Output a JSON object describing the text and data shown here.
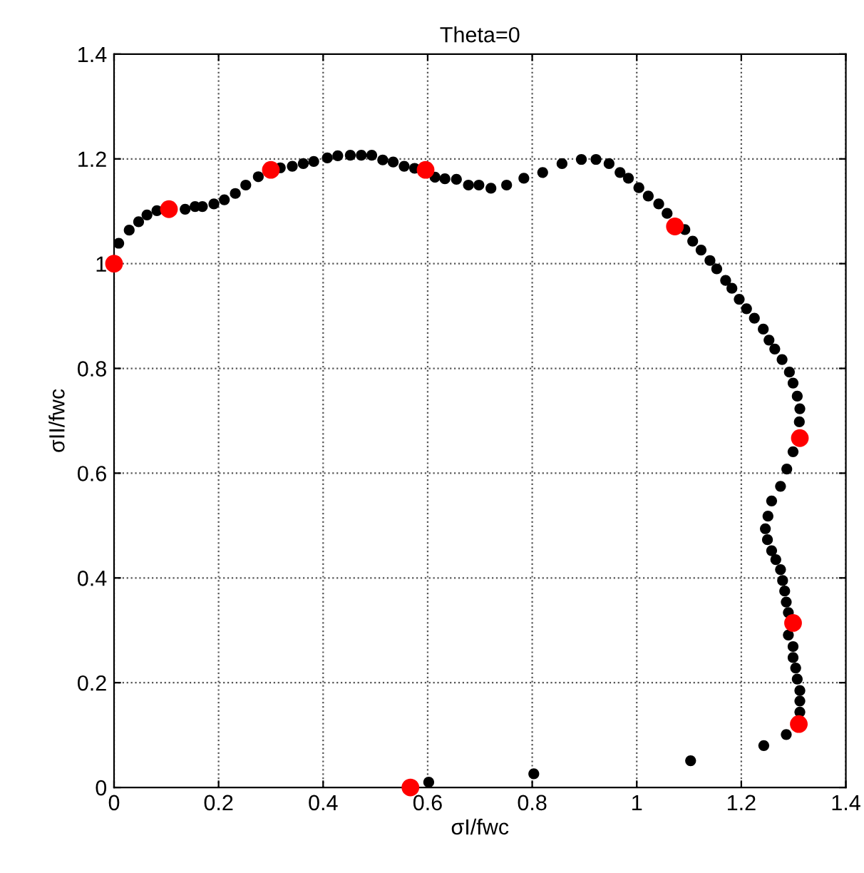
{
  "chart_data": {
    "type": "scatter",
    "title": "Theta=0",
    "xlabel": "σI/fwc",
    "ylabel": "σII/fwc",
    "xlim": [
      0,
      1.4
    ],
    "ylim": [
      0,
      1.4
    ],
    "xticks": [
      0,
      0.2,
      0.4,
      0.6,
      0.8,
      1,
      1.2,
      1.4
    ],
    "yticks": [
      0,
      0.2,
      0.4,
      0.6,
      0.8,
      1,
      1.2,
      1.4
    ],
    "grid": true,
    "legend": false,
    "marker": "circle",
    "series": [
      {
        "color": "#000000",
        "x": [
          0.009,
          0.029,
          0.047,
          0.063,
          0.082,
          0.136,
          0.155,
          0.169,
          0.191,
          0.211,
          0.232,
          0.252,
          0.276,
          0.318,
          0.341,
          0.362,
          0.382,
          0.408,
          0.428,
          0.452,
          0.473,
          0.493,
          0.514,
          0.534,
          0.555,
          0.575,
          0.614,
          0.633,
          0.655,
          0.678,
          0.698,
          0.721,
          0.751,
          0.784,
          0.82,
          0.857,
          0.894,
          0.922,
          0.947,
          0.968,
          0.984,
          1.004,
          1.022,
          1.042,
          1.058,
          1.092,
          1.107,
          1.123,
          1.14,
          1.153,
          1.17,
          1.182,
          1.196,
          1.21,
          1.225,
          1.242,
          1.253,
          1.264,
          1.278,
          1.292,
          1.299,
          1.307,
          1.312,
          1.311,
          1.299,
          1.287,
          1.275,
          1.258,
          1.251,
          1.246,
          1.25,
          1.258,
          1.266,
          1.275,
          1.279,
          1.283,
          1.286,
          1.29,
          1.29,
          1.299,
          1.299,
          1.304,
          1.307,
          1.312,
          1.312,
          1.312,
          1.286,
          1.243,
          1.103,
          0.803,
          0.602
        ],
        "values": [
          1.039,
          1.064,
          1.08,
          1.093,
          1.101,
          1.104,
          1.109,
          1.109,
          1.114,
          1.122,
          1.134,
          1.15,
          1.166,
          1.183,
          1.186,
          1.191,
          1.195,
          1.202,
          1.206,
          1.207,
          1.207,
          1.207,
          1.198,
          1.194,
          1.186,
          1.182,
          1.165,
          1.162,
          1.161,
          1.15,
          1.15,
          1.144,
          1.15,
          1.163,
          1.174,
          1.191,
          1.199,
          1.199,
          1.191,
          1.174,
          1.163,
          1.145,
          1.129,
          1.114,
          1.096,
          1.065,
          1.043,
          1.026,
          1.006,
          0.99,
          0.968,
          0.953,
          0.932,
          0.914,
          0.896,
          0.875,
          0.854,
          0.837,
          0.817,
          0.793,
          0.772,
          0.747,
          0.723,
          0.698,
          0.641,
          0.608,
          0.575,
          0.547,
          0.518,
          0.494,
          0.473,
          0.452,
          0.435,
          0.416,
          0.395,
          0.375,
          0.354,
          0.334,
          0.291,
          0.269,
          0.248,
          0.228,
          0.207,
          0.185,
          0.165,
          0.144,
          0.101,
          0.08,
          0.051,
          0.026,
          0.01
        ]
      },
      {
        "color": "#ff0000",
        "x": [
          0,
          0.105,
          0.3,
          0.596,
          1.073,
          1.312,
          1.299,
          1.31,
          0.567
        ],
        "values": [
          1.0,
          1.104,
          1.179,
          1.179,
          1.071,
          0.667,
          0.314,
          0.121,
          0
        ]
      }
    ]
  }
}
